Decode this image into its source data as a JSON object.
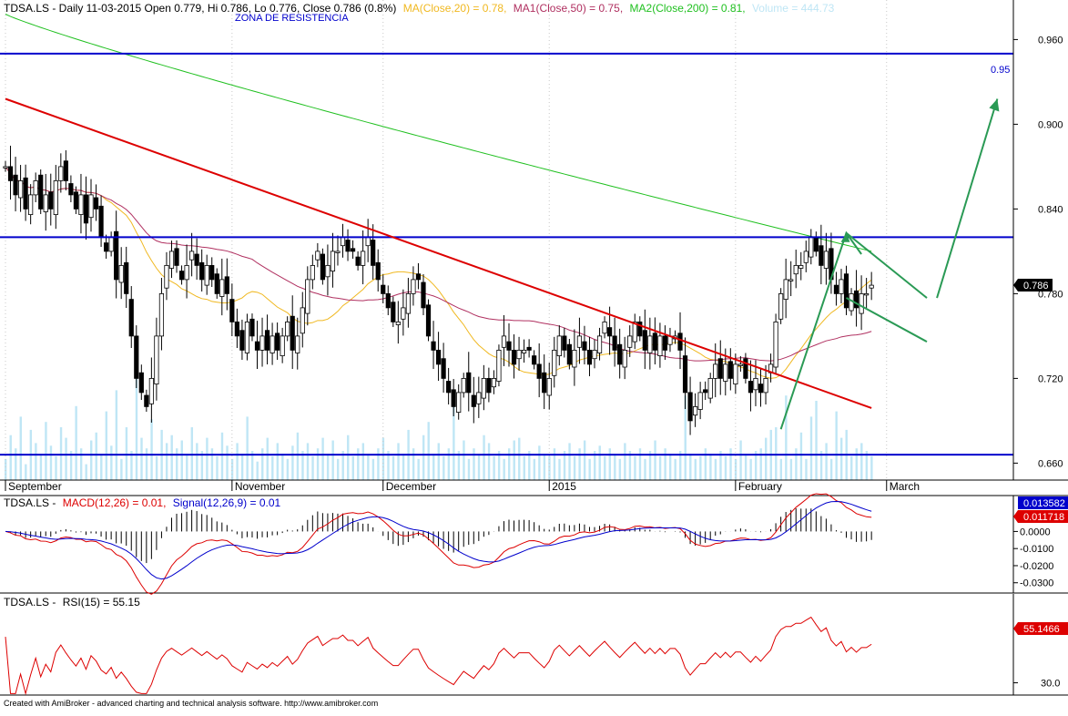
{
  "price_header": {
    "title": "TDSA.LS - Daily 11-03-2015 Open 0.779, Hi 0.786, Lo 0.776, Close 0.786 (0.8%)",
    "ma": "MA(Close,20) = 0.78,",
    "ma1": "MA1(Close,50) = 0.75,",
    "ma2": "MA2(Close,200) = 0.81,",
    "volume": "Volume = 444.73"
  },
  "zone_label": "ZONA DE RESISTENCIA",
  "resistance_label": "0.95",
  "last_price_badge": "0.786",
  "macd_header": {
    "ticker": "TDSA.LS -",
    "macd": "MACD(12,26) = 0.01,",
    "signal": "Signal(12,26,9) = 0.01"
  },
  "macd_badges": {
    "signal": "0.013582",
    "macd": "0.011718"
  },
  "rsi_header": {
    "ticker": "TDSA.LS -",
    "rsi": "RSI(15) = 55.15"
  },
  "rsi_badge": "55.1466",
  "footer": "Created with AmiBroker - advanced charting and technical analysis software. http://www.amibroker.com",
  "colors": {
    "ma20": "#f0b820",
    "ma50": "#b03060",
    "ma200": "#20c020",
    "volume": "#bfe6f5",
    "resistance": "#0000cc",
    "trendline": "#dd0000",
    "projection": "#2a9a55",
    "macd": "#dd0000",
    "signal": "#0000cc",
    "rsi": "#dd0000"
  },
  "chart_data": [
    {
      "type": "candlestick",
      "ticker": "TDSA.LS",
      "ylim": [
        0.648,
        0.988
      ],
      "yticks": [
        "0.960",
        "0.900",
        "0.840",
        "0.780",
        "0.720",
        "0.660"
      ],
      "xticks": [
        {
          "i": 0,
          "label": "September"
        },
        {
          "i": 45,
          "label": "November"
        },
        {
          "i": 75,
          "label": "December"
        },
        {
          "i": 108,
          "label": "2015"
        },
        {
          "i": 145,
          "label": "February"
        },
        {
          "i": 175,
          "label": "March"
        }
      ],
      "resistance_levels": [
        0.95,
        0.82,
        0.666
      ],
      "trendline": [
        [
          0,
          0.918
        ],
        [
          172,
          0.699
        ]
      ],
      "closes": [
        0.87,
        0.86,
        0.85,
        0.86,
        0.84,
        0.85,
        0.86,
        0.84,
        0.85,
        0.84,
        0.86,
        0.87,
        0.86,
        0.85,
        0.84,
        0.85,
        0.83,
        0.85,
        0.84,
        0.82,
        0.81,
        0.82,
        0.79,
        0.8,
        0.78,
        0.75,
        0.72,
        0.71,
        0.7,
        0.72,
        0.75,
        0.78,
        0.8,
        0.81,
        0.8,
        0.79,
        0.8,
        0.81,
        0.8,
        0.79,
        0.8,
        0.79,
        0.78,
        0.79,
        0.78,
        0.76,
        0.75,
        0.74,
        0.76,
        0.75,
        0.74,
        0.75,
        0.74,
        0.75,
        0.74,
        0.75,
        0.76,
        0.74,
        0.75,
        0.77,
        0.79,
        0.8,
        0.81,
        0.79,
        0.8,
        0.81,
        0.81,
        0.82,
        0.81,
        0.81,
        0.8,
        0.81,
        0.82,
        0.8,
        0.79,
        0.78,
        0.77,
        0.76,
        0.76,
        0.77,
        0.78,
        0.79,
        0.79,
        0.77,
        0.75,
        0.74,
        0.73,
        0.72,
        0.71,
        0.7,
        0.71,
        0.72,
        0.71,
        0.7,
        0.71,
        0.72,
        0.71,
        0.72,
        0.74,
        0.75,
        0.74,
        0.73,
        0.74,
        0.74,
        0.74,
        0.73,
        0.72,
        0.71,
        0.72,
        0.74,
        0.75,
        0.74,
        0.73,
        0.74,
        0.75,
        0.74,
        0.73,
        0.74,
        0.75,
        0.76,
        0.75,
        0.74,
        0.73,
        0.74,
        0.75,
        0.76,
        0.75,
        0.74,
        0.75,
        0.74,
        0.75,
        0.74,
        0.75,
        0.75,
        0.74,
        0.71,
        0.69,
        0.7,
        0.71,
        0.71,
        0.72,
        0.73,
        0.72,
        0.73,
        0.72,
        0.73,
        0.73,
        0.72,
        0.71,
        0.72,
        0.71,
        0.72,
        0.73,
        0.76,
        0.78,
        0.79,
        0.79,
        0.8,
        0.8,
        0.81,
        0.82,
        0.81,
        0.8,
        0.81,
        0.79,
        0.78,
        0.79,
        0.77,
        0.78,
        0.77,
        0.78,
        0.78,
        0.786
      ]
    },
    {
      "type": "line",
      "name": "MACD(12,26)",
      "ylim": [
        -0.036,
        0.021
      ],
      "yticks": [
        "0.0000",
        "-0.0100",
        "-0.0200",
        "-0.0300"
      ]
    },
    {
      "type": "line",
      "name": "RSI(15)",
      "ylim": [
        22,
        88
      ],
      "yticks": [
        "30.0"
      ],
      "last": 55.1466
    }
  ]
}
